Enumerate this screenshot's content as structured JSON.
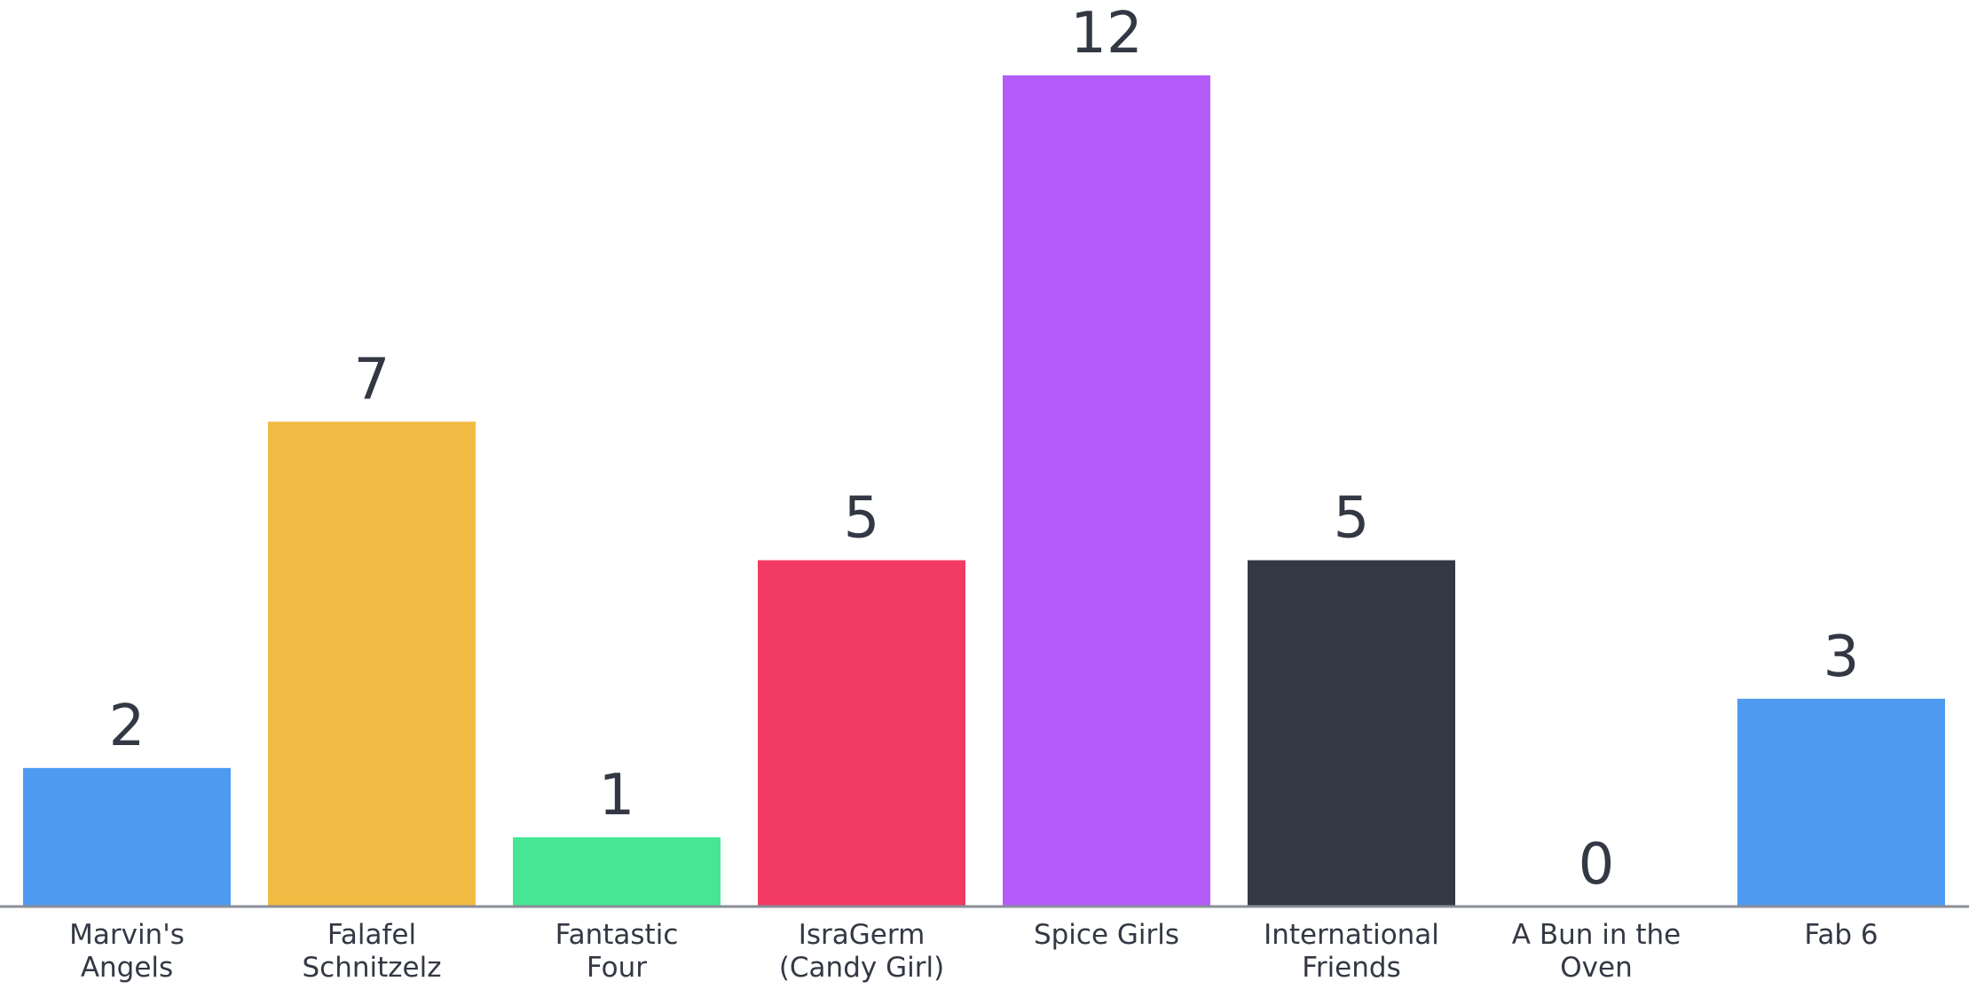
{
  "chart_data": {
    "type": "bar",
    "categories": [
      [
        "Marvin's",
        "Angels"
      ],
      [
        "Falafel",
        "Schnitzelz"
      ],
      [
        "Fantastic",
        "Four"
      ],
      [
        "IsraGerm",
        "(Candy Girl)"
      ],
      [
        "Spice Girls"
      ],
      [
        "International",
        "Friends"
      ],
      [
        "A Bun in the",
        "Oven"
      ],
      [
        "Fab 6"
      ]
    ],
    "values": [
      2,
      7,
      1,
      5,
      12,
      5,
      0,
      3
    ],
    "colors": [
      "#4E9AF0",
      "#F0BB42",
      "#46E694",
      "#F23B62",
      "#B35CFA",
      "#333844",
      "#FFFFFF",
      "#4E9AF0"
    ],
    "value_labels": [
      "2",
      "7",
      "1",
      "5",
      "12",
      "5",
      "0",
      "3"
    ],
    "title": "",
    "xlabel": "",
    "ylabel": "",
    "ylim": [
      0,
      12
    ],
    "grid": false,
    "legend": "none"
  }
}
